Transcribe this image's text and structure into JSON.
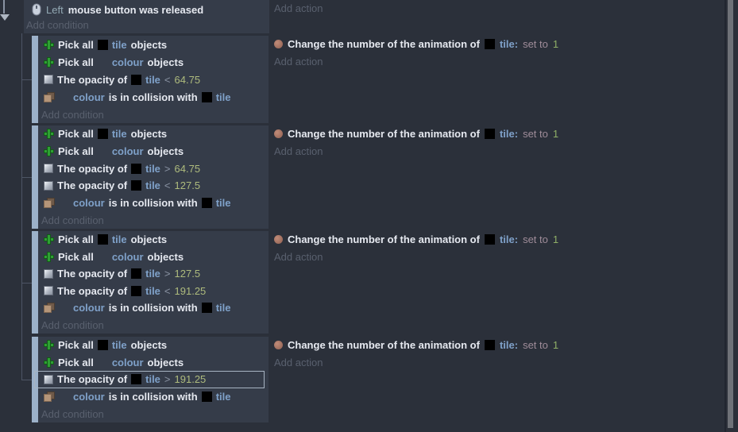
{
  "colors": {
    "page_bg": "#2b303a",
    "block_bg": "#353c49",
    "margin_bar": "#9cb1c9",
    "object_name": "#7fa1c9",
    "number": "#aebb7d",
    "value_green": "#8fae67",
    "set_to": "#9f8c99",
    "dim_link": "#59606e",
    "selection_outline": "#a7b4c2",
    "tree_line": "#4d5565",
    "scroll_thumb": "#6f7278"
  },
  "labels": {
    "add_condition": "Add condition",
    "add_action": "Add action"
  },
  "parent_event": {
    "icon": "mouse-icon",
    "param": "Left",
    "text": "mouse button was released"
  },
  "action": {
    "icon": "sprite-icon",
    "text": "Change the number of the animation of",
    "object_icon": "tile-thumbnail-icon",
    "object": "tile:",
    "set_to": "set to",
    "value": "1"
  },
  "blocks": [
    {
      "selected": -1,
      "conditions": [
        {
          "icon": "pick-plus-icon",
          "segments": [
            {
              "c": "w",
              "t": "Pick all"
            },
            {
              "c": "tilebox",
              "t": ""
            },
            {
              "c": "obj",
              "t": "tile"
            },
            {
              "c": "w",
              "t": "objects"
            }
          ]
        },
        {
          "icon": "pick-plus-icon",
          "segments": [
            {
              "c": "w",
              "t": "Pick all"
            },
            {
              "c": "blank",
              "t": ""
            },
            {
              "c": "obj",
              "t": "colour"
            },
            {
              "c": "w",
              "t": "objects"
            }
          ]
        },
        {
          "icon": "opacity-icon",
          "segments": [
            {
              "c": "w",
              "t": "The opacity of"
            },
            {
              "c": "tilebox",
              "t": ""
            },
            {
              "c": "obj",
              "t": "tile"
            },
            {
              "c": "op",
              "t": "<"
            },
            {
              "c": "num",
              "t": "64.75"
            }
          ]
        },
        {
          "icon": "collision-icon",
          "segments": [
            {
              "c": "blank",
              "t": ""
            },
            {
              "c": "obj",
              "t": "colour"
            },
            {
              "c": "w",
              "t": "is in collision with"
            },
            {
              "c": "tilebox",
              "t": ""
            },
            {
              "c": "obj",
              "t": "tile"
            }
          ]
        }
      ]
    },
    {
      "selected": -1,
      "conditions": [
        {
          "icon": "pick-plus-icon",
          "segments": [
            {
              "c": "w",
              "t": "Pick all"
            },
            {
              "c": "tilebox",
              "t": ""
            },
            {
              "c": "obj",
              "t": "tile"
            },
            {
              "c": "w",
              "t": "objects"
            }
          ]
        },
        {
          "icon": "pick-plus-icon",
          "segments": [
            {
              "c": "w",
              "t": "Pick all"
            },
            {
              "c": "blank",
              "t": ""
            },
            {
              "c": "obj",
              "t": "colour"
            },
            {
              "c": "w",
              "t": "objects"
            }
          ]
        },
        {
          "icon": "opacity-icon",
          "segments": [
            {
              "c": "w",
              "t": "The opacity of"
            },
            {
              "c": "tilebox",
              "t": ""
            },
            {
              "c": "obj",
              "t": "tile"
            },
            {
              "c": "op",
              "t": ">"
            },
            {
              "c": "num",
              "t": "64.75"
            }
          ]
        },
        {
          "icon": "opacity-icon",
          "segments": [
            {
              "c": "w",
              "t": "The opacity of"
            },
            {
              "c": "tilebox",
              "t": ""
            },
            {
              "c": "obj",
              "t": "tile"
            },
            {
              "c": "op",
              "t": "<"
            },
            {
              "c": "num",
              "t": "127.5"
            }
          ]
        },
        {
          "icon": "collision-icon",
          "segments": [
            {
              "c": "blank",
              "t": ""
            },
            {
              "c": "obj",
              "t": "colour"
            },
            {
              "c": "w",
              "t": "is in collision with"
            },
            {
              "c": "tilebox",
              "t": ""
            },
            {
              "c": "obj",
              "t": "tile"
            }
          ]
        }
      ]
    },
    {
      "selected": -1,
      "conditions": [
        {
          "icon": "pick-plus-icon",
          "segments": [
            {
              "c": "w",
              "t": "Pick all"
            },
            {
              "c": "tilebox",
              "t": ""
            },
            {
              "c": "obj",
              "t": "tile"
            },
            {
              "c": "w",
              "t": "objects"
            }
          ]
        },
        {
          "icon": "pick-plus-icon",
          "segments": [
            {
              "c": "w",
              "t": "Pick all"
            },
            {
              "c": "blank",
              "t": ""
            },
            {
              "c": "obj",
              "t": "colour"
            },
            {
              "c": "w",
              "t": "objects"
            }
          ]
        },
        {
          "icon": "opacity-icon",
          "segments": [
            {
              "c": "w",
              "t": "The opacity of"
            },
            {
              "c": "tilebox",
              "t": ""
            },
            {
              "c": "obj",
              "t": "tile"
            },
            {
              "c": "op",
              "t": ">"
            },
            {
              "c": "num",
              "t": "127.5"
            }
          ]
        },
        {
          "icon": "opacity-icon",
          "segments": [
            {
              "c": "w",
              "t": "The opacity of"
            },
            {
              "c": "tilebox",
              "t": ""
            },
            {
              "c": "obj",
              "t": "tile"
            },
            {
              "c": "op",
              "t": "<"
            },
            {
              "c": "num",
              "t": "191.25"
            }
          ]
        },
        {
          "icon": "collision-icon",
          "segments": [
            {
              "c": "blank",
              "t": ""
            },
            {
              "c": "obj",
              "t": "colour"
            },
            {
              "c": "w",
              "t": "is in collision with"
            },
            {
              "c": "tilebox",
              "t": ""
            },
            {
              "c": "obj",
              "t": "tile"
            }
          ]
        }
      ]
    },
    {
      "selected": 2,
      "conditions": [
        {
          "icon": "pick-plus-icon",
          "segments": [
            {
              "c": "w",
              "t": "Pick all"
            },
            {
              "c": "tilebox",
              "t": ""
            },
            {
              "c": "obj",
              "t": "tile"
            },
            {
              "c": "w",
              "t": "objects"
            }
          ]
        },
        {
          "icon": "pick-plus-icon",
          "segments": [
            {
              "c": "w",
              "t": "Pick all"
            },
            {
              "c": "blank",
              "t": ""
            },
            {
              "c": "obj",
              "t": "colour"
            },
            {
              "c": "w",
              "t": "objects"
            }
          ]
        },
        {
          "icon": "opacity-icon",
          "segments": [
            {
              "c": "w",
              "t": "The opacity of"
            },
            {
              "c": "tilebox",
              "t": ""
            },
            {
              "c": "obj",
              "t": "tile"
            },
            {
              "c": "op",
              "t": ">"
            },
            {
              "c": "num",
              "t": "191.25"
            }
          ]
        },
        {
          "icon": "collision-icon",
          "segments": [
            {
              "c": "blank",
              "t": ""
            },
            {
              "c": "obj",
              "t": "colour"
            },
            {
              "c": "w",
              "t": "is in collision with"
            },
            {
              "c": "tilebox",
              "t": ""
            },
            {
              "c": "obj",
              "t": "tile"
            }
          ]
        }
      ]
    }
  ]
}
